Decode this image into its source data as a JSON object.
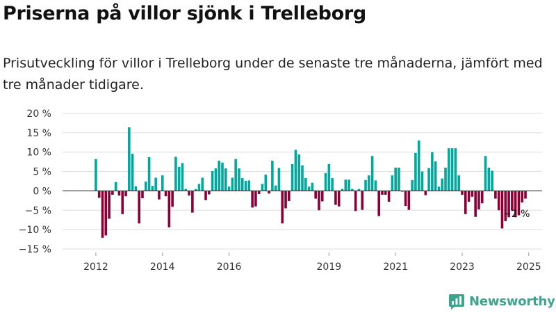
{
  "title": "Priserna på villor sjönk i Trelleborg",
  "subtitle": "Prisutveckling för villor i Trelleborg under de senaste tre månaderna, jämfört med tre månader tidigare.",
  "brand": {
    "name": "Newsworthy",
    "color": "#3aa58c"
  },
  "colors": {
    "positive": "#00a99d",
    "negative": "#8c0035",
    "grid": "#dddddd",
    "axis": "#333333"
  },
  "end_label": "−2 %",
  "chart_data": {
    "type": "bar",
    "title": "",
    "xlabel": "",
    "ylabel": "",
    "ylim": [
      -15,
      20
    ],
    "yticks": [
      {
        "value": 20,
        "label": "20 %"
      },
      {
        "value": 15,
        "label": "15 %"
      },
      {
        "value": 10,
        "label": "10 %"
      },
      {
        "value": 5,
        "label": "5 %"
      },
      {
        "value": 0,
        "label": "0 %"
      },
      {
        "value": -5,
        "label": "−5 %"
      },
      {
        "value": -10,
        "label": "−10 %"
      },
      {
        "value": -15,
        "label": "−15 %"
      }
    ],
    "xlim": [
      2011.0,
      2025.4
    ],
    "xticks": [
      {
        "value": 2012,
        "label": "2012"
      },
      {
        "value": 2014,
        "label": "2014"
      },
      {
        "value": 2016,
        "label": "2016"
      },
      {
        "value": 2019,
        "label": "2019"
      },
      {
        "value": 2021,
        "label": "2021"
      },
      {
        "value": 2023,
        "label": "2023"
      },
      {
        "value": 2025,
        "label": "2025"
      }
    ],
    "grid": true,
    "legend": "none",
    "x": [
      2012.0,
      2012.1,
      2012.2,
      2012.3,
      2012.4,
      2012.5,
      2012.6,
      2012.7,
      2012.8,
      2012.9,
      2013.0,
      2013.1,
      2013.2,
      2013.3,
      2013.4,
      2013.5,
      2013.6,
      2013.7,
      2013.8,
      2013.9,
      2014.0,
      2014.1,
      2014.2,
      2014.3,
      2014.4,
      2014.5,
      2014.6,
      2014.7,
      2014.8,
      2014.9,
      2015.0,
      2015.1,
      2015.2,
      2015.3,
      2015.4,
      2015.5,
      2015.6,
      2015.7,
      2015.8,
      2015.9,
      2016.0,
      2016.1,
      2016.2,
      2016.3,
      2016.4,
      2016.5,
      2016.6,
      2016.7,
      2016.8,
      2016.9,
      2017.0,
      2017.1,
      2017.2,
      2017.3,
      2017.4,
      2017.5,
      2017.6,
      2017.7,
      2017.8,
      2017.9,
      2018.0,
      2018.1,
      2018.2,
      2018.3,
      2018.4,
      2018.5,
      2018.6,
      2018.7,
      2018.8,
      2018.9,
      2019.0,
      2019.1,
      2019.2,
      2019.3,
      2019.4,
      2019.5,
      2019.6,
      2019.7,
      2019.8,
      2019.9,
      2020.0,
      2020.1,
      2020.2,
      2020.3,
      2020.4,
      2020.5,
      2020.6,
      2020.7,
      2020.8,
      2020.9,
      2021.0,
      2021.1,
      2021.2,
      2021.3,
      2021.4,
      2021.5,
      2021.6,
      2021.7,
      2021.8,
      2021.9,
      2022.0,
      2022.1,
      2022.2,
      2022.3,
      2022.4,
      2022.5,
      2022.6,
      2022.7,
      2022.8,
      2022.9,
      2023.0,
      2023.1,
      2023.2,
      2023.3,
      2023.4,
      2023.5,
      2023.6,
      2023.7,
      2023.8,
      2023.9,
      2024.0,
      2024.1,
      2024.2,
      2024.3,
      2024.4,
      2024.5,
      2024.6,
      2024.7,
      2024.8,
      2024.9
    ],
    "series": [
      {
        "values": [
          8.2,
          -1.8,
          -12.1,
          -11.5,
          -7.2,
          -1.0,
          2.3,
          -1.2,
          -6.0,
          -1.4,
          16.4,
          9.6,
          1.2,
          -8.4,
          -1.9,
          2.4,
          8.7,
          1.3,
          3.4,
          -2.2,
          4.0,
          -1.4,
          -9.4,
          -4.1,
          8.8,
          6.2,
          7.2,
          0.5,
          -1.2,
          -5.6,
          0.5,
          1.8,
          3.4,
          -2.4,
          -0.9,
          5.1,
          5.8,
          7.8,
          7.3,
          5.8,
          1.1,
          3.4,
          8.2,
          5.8,
          3.3,
          2.6,
          2.7,
          -4.3,
          -4.0,
          -0.8,
          1.8,
          4.2,
          -0.7,
          7.8,
          1.4,
          5.9,
          -8.4,
          -4.5,
          -2.6,
          6.9,
          10.6,
          9.4,
          6.6,
          3.3,
          1.1,
          2.1,
          -2.0,
          -5.0,
          -2.7,
          4.6,
          6.9,
          3.3,
          -3.6,
          -4.0,
          0.5,
          2.9,
          2.9,
          0.5,
          -5.2,
          0.5,
          -4.9,
          2.8,
          4.0,
          9.0,
          2.7,
          -6.5,
          -1.0,
          -1.0,
          -2.8,
          4.0,
          6.0,
          6.0,
          -0.2,
          -3.9,
          -4.9,
          2.8,
          9.8,
          13.0,
          5.0,
          -1.1,
          5.9,
          10.0,
          7.6,
          1.1,
          3.2,
          6.0,
          11.0,
          11.0,
          11.0,
          4.0,
          -1.0,
          -6.0,
          -2.8,
          -1.5,
          -6.7,
          -4.8,
          -3.2,
          9.0,
          6.0,
          5.2,
          -2.0,
          -5.0,
          -9.7,
          -7.8,
          -6.8,
          -5.1,
          -6.8,
          -6.3,
          -3.0,
          -2.0
        ]
      }
    ]
  }
}
